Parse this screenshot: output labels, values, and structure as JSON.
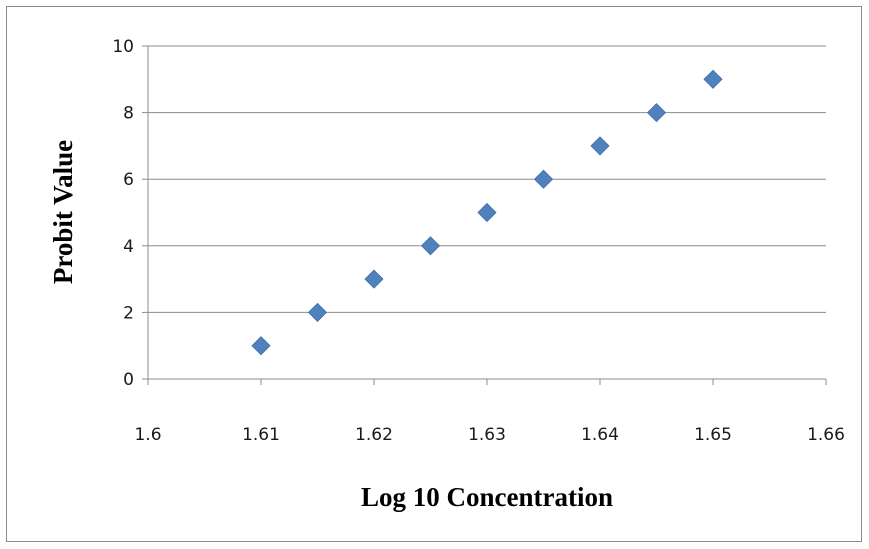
{
  "chart_data": {
    "type": "scatter",
    "title": "",
    "xlabel": "Log 10 Concentration",
    "ylabel": "Probit Value",
    "xlim": [
      1.6,
      1.66
    ],
    "ylim": [
      0,
      10
    ],
    "x_ticks": [
      "1.6",
      "1.61",
      "1.62",
      "1.63",
      "1.64",
      "1.65",
      "1.66"
    ],
    "y_ticks": [
      "0",
      "2",
      "4",
      "6",
      "8",
      "10"
    ],
    "grid": "horizontal",
    "legend": "none",
    "marker": "diamond",
    "marker_color": "#4f81bd",
    "series": [
      {
        "x": [
          1.61,
          1.615,
          1.62,
          1.625,
          1.63,
          1.635,
          1.64,
          1.645,
          1.65
        ],
        "y": [
          1,
          2,
          3,
          4,
          5,
          6,
          7,
          8,
          9
        ]
      }
    ]
  }
}
